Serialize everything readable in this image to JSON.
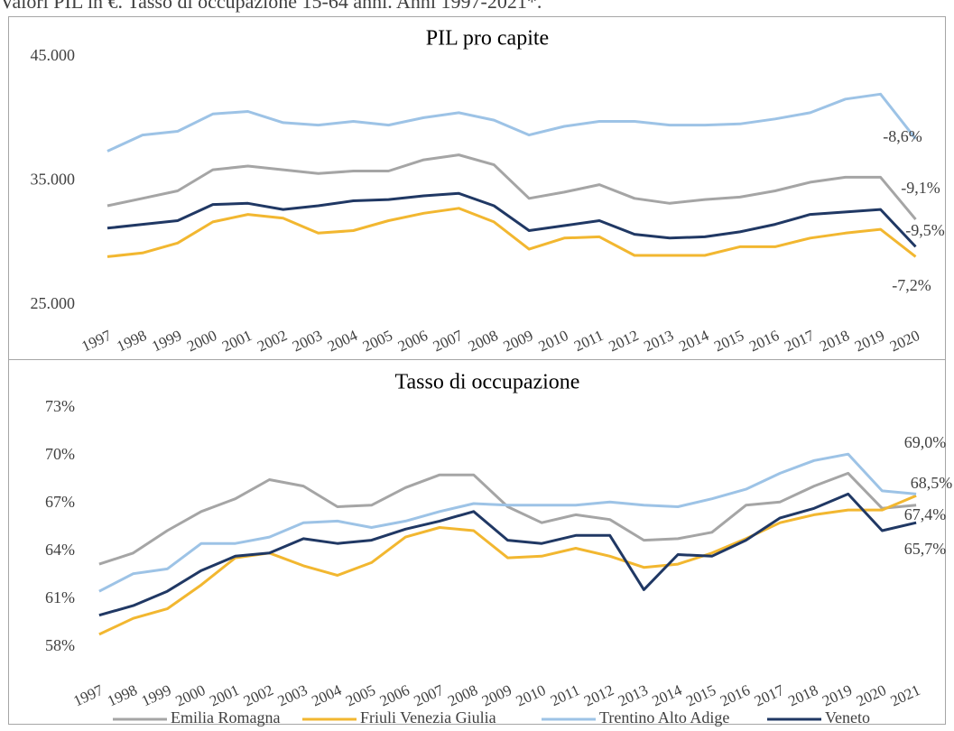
{
  "header": {
    "text": "Valori PIL in €. Tasso di occupazione 15-64 anni. Anni 1997-2021*."
  },
  "chart_data": [
    {
      "type": "line",
      "title": "PIL pro capite",
      "categories": [
        "1997",
        "1998",
        "1999",
        "2000",
        "2001",
        "2002",
        "2003",
        "2004",
        "2005",
        "2006",
        "2007",
        "2008",
        "2009",
        "2010",
        "2011",
        "2012",
        "2013",
        "2014",
        "2015",
        "2016",
        "2017",
        "2018",
        "2019",
        "2020"
      ],
      "ylim": [
        25000,
        45000
      ],
      "yticks": [
        {
          "value": 25000,
          "label": "25.000"
        },
        {
          "value": 35000,
          "label": "35.000"
        },
        {
          "value": 45000,
          "label": "45.000"
        }
      ],
      "series": [
        {
          "name": "Emilia Romagna",
          "color": "#a5a5a5",
          "values": [
            33000,
            33600,
            34200,
            35900,
            36200,
            35900,
            35600,
            35800,
            35800,
            36700,
            37100,
            36300,
            33600,
            34100,
            34700,
            33600,
            33200,
            33500,
            33700,
            34200,
            34900,
            35300,
            35300,
            31900
          ]
        },
        {
          "name": "Friuli Venezia Giulia",
          "color": "#f2b730",
          "values": [
            28900,
            29200,
            30000,
            31700,
            32300,
            32000,
            30800,
            31000,
            31800,
            32400,
            32800,
            31700,
            29500,
            30400,
            30500,
            29000,
            29000,
            29000,
            29700,
            29700,
            30400,
            30800,
            31100,
            28900
          ]
        },
        {
          "name": "Trentino Alto Adige",
          "color": "#9dc3e6",
          "values": [
            37400,
            38700,
            39000,
            40400,
            40600,
            39700,
            39500,
            39800,
            39500,
            40100,
            40500,
            39900,
            38700,
            39400,
            39800,
            39800,
            39500,
            39500,
            39600,
            40000,
            40500,
            41600,
            42000,
            38400
          ]
        },
        {
          "name": "Veneto",
          "color": "#203864",
          "values": [
            31200,
            31500,
            31800,
            33100,
            33200,
            32700,
            33000,
            33400,
            33500,
            33800,
            34000,
            33000,
            31000,
            31400,
            31800,
            30700,
            30400,
            30500,
            30900,
            31500,
            32300,
            32500,
            32700,
            29700
          ]
        }
      ],
      "annotations": [
        {
          "text": "-8,6%"
        },
        {
          "text": "-9,1%"
        },
        {
          "text": "-9,5%"
        },
        {
          "text": "-7,2%"
        }
      ]
    },
    {
      "type": "line",
      "title": "Tasso di occupazione",
      "categories": [
        "1997",
        "1998",
        "1999",
        "2000",
        "2001",
        "2002",
        "2003",
        "2004",
        "2005",
        "2006",
        "2007",
        "2008",
        "2009",
        "2010",
        "2011",
        "2012",
        "2013",
        "2014",
        "2015",
        "2016",
        "2017",
        "2018",
        "2019",
        "2020",
        "2021"
      ],
      "ylim": [
        58,
        73
      ],
      "yticks": [
        {
          "value": 58,
          "label": "58%"
        },
        {
          "value": 61,
          "label": "61%"
        },
        {
          "value": 64,
          "label": "64%"
        },
        {
          "value": 67,
          "label": "67%"
        },
        {
          "value": 70,
          "label": "70%"
        },
        {
          "value": 73,
          "label": "73%"
        }
      ],
      "series": [
        {
          "name": "Emilia Romagna",
          "color": "#a5a5a5",
          "values": [
            63.2,
            63.9,
            65.3,
            66.5,
            67.3,
            68.5,
            68.1,
            66.8,
            66.9,
            68.0,
            68.8,
            68.8,
            66.8,
            65.8,
            66.3,
            66.0,
            64.7,
            64.8,
            65.2,
            66.9,
            67.1,
            68.1,
            68.9,
            66.7,
            66.9
          ]
        },
        {
          "name": "Friuli Venezia Giulia",
          "color": "#f2b730",
          "values": [
            58.8,
            59.8,
            60.4,
            61.9,
            63.6,
            63.9,
            63.1,
            62.5,
            63.3,
            64.9,
            65.5,
            65.3,
            63.6,
            63.7,
            64.2,
            63.7,
            63.0,
            63.2,
            63.9,
            64.8,
            65.8,
            66.3,
            66.6,
            66.6,
            67.5
          ]
        },
        {
          "name": "Trentino Alto Adige",
          "color": "#9dc3e6",
          "values": [
            61.5,
            62.6,
            62.9,
            64.5,
            64.5,
            64.9,
            65.8,
            65.9,
            65.5,
            65.9,
            66.5,
            67.0,
            66.9,
            66.9,
            66.9,
            67.1,
            66.9,
            66.8,
            67.3,
            67.9,
            68.9,
            69.7,
            70.1,
            67.8,
            67.6
          ]
        },
        {
          "name": "Veneto",
          "color": "#203864",
          "values": [
            60.0,
            60.6,
            61.5,
            62.8,
            63.7,
            63.9,
            64.8,
            64.5,
            64.7,
            65.4,
            65.9,
            66.5,
            64.7,
            64.5,
            65.0,
            65.0,
            61.6,
            63.8,
            63.7,
            64.7,
            66.1,
            66.7,
            67.6,
            65.3,
            65.8
          ]
        }
      ],
      "annotations": [
        {
          "text": "69,0%"
        },
        {
          "text": "68,5%"
        },
        {
          "text": "67,4%"
        },
        {
          "text": "65,7%"
        }
      ]
    }
  ]
}
